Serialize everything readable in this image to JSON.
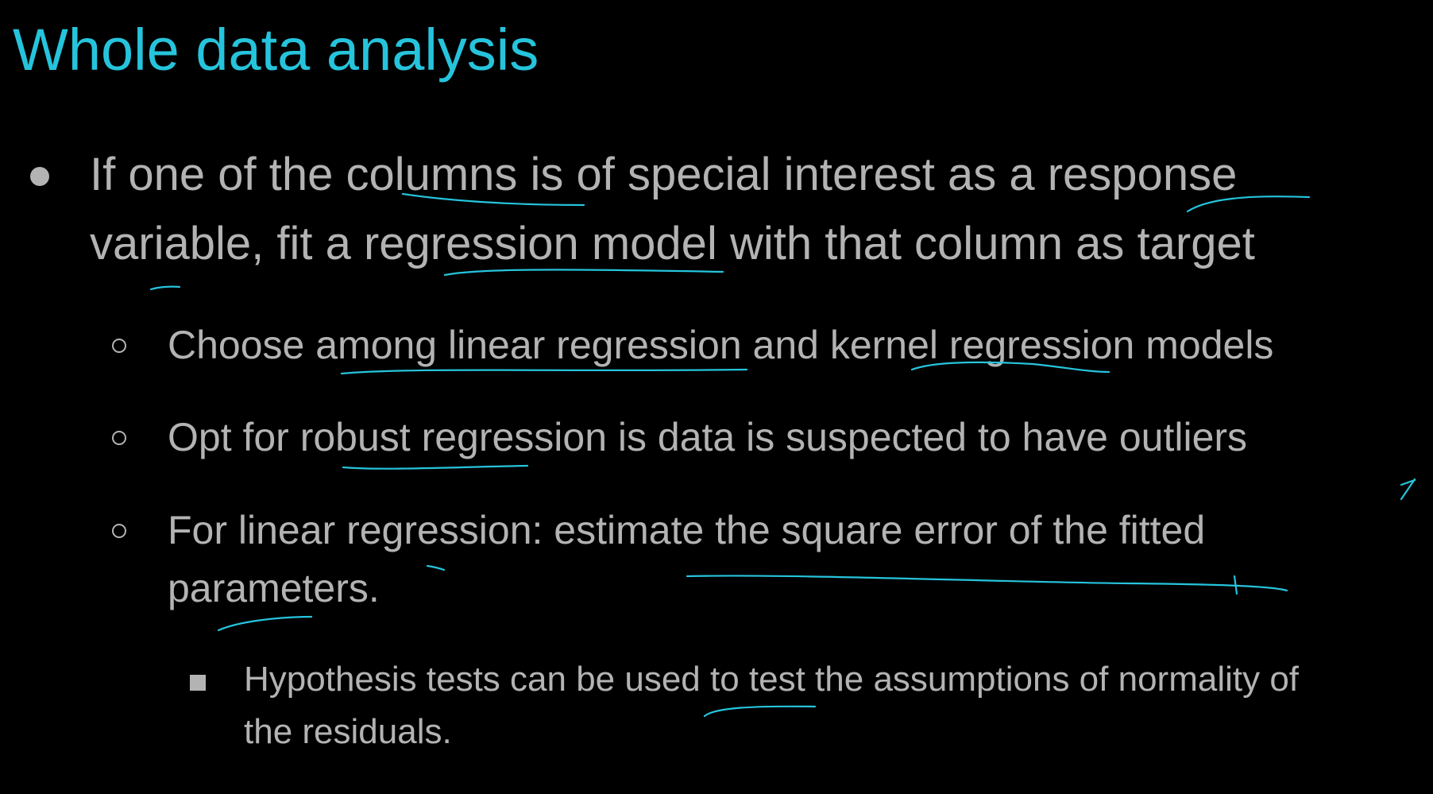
{
  "slide": {
    "title": "Whole data analysis",
    "title_color": "#26c4dc",
    "text_color": "#b3b3b3",
    "background": "#000000",
    "bullets": [
      {
        "level": 1,
        "marker": "filled-circle-bullet",
        "lines": [
          "If one of the columns is of special interest as a response",
          "variable, fit a regression model with that column as target"
        ]
      },
      {
        "level": 2,
        "marker": "hollow-circle-bullet",
        "lines": [
          "Choose among linear regression and kernel regression models"
        ]
      },
      {
        "level": 2,
        "marker": "hollow-circle-bullet",
        "lines": [
          "Opt for robust regression is data is suspected to have outliers"
        ]
      },
      {
        "level": 2,
        "marker": "hollow-circle-bullet",
        "lines": [
          "For linear regression:  estimate the square error of the fitted",
          "parameters."
        ]
      },
      {
        "level": 3,
        "marker": "square-bullet",
        "lines": [
          "Hypothesis tests  can be used to test the assumptions of normality of",
          "the residuals."
        ]
      }
    ]
  }
}
